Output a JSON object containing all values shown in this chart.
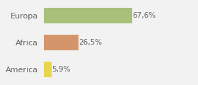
{
  "categories": [
    "America",
    "Africa",
    "Europa"
  ],
  "values": [
    5.9,
    26.5,
    67.6
  ],
  "bar_colors": [
    "#e8d44d",
    "#d4956a",
    "#a8c07a"
  ],
  "labels": [
    "5,9%",
    "26,5%",
    "67,6%"
  ],
  "background_color": "#f2f2f2",
  "xlim": [
    0,
    100
  ],
  "bar_height": 0.58,
  "label_fontsize": 7.5,
  "tick_fontsize": 8
}
